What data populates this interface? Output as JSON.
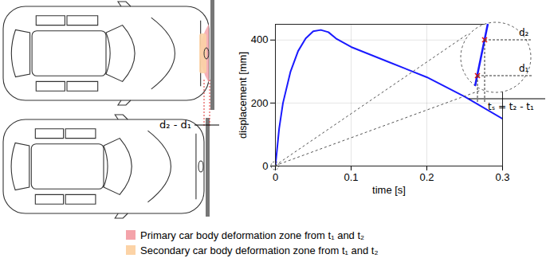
{
  "chart_data": {
    "type": "line",
    "x": [
      0,
      0.005,
      0.01,
      0.02,
      0.03,
      0.04,
      0.05,
      0.06,
      0.07,
      0.08,
      0.1,
      0.15,
      0.2,
      0.25,
      0.3
    ],
    "values": [
      0,
      120,
      200,
      300,
      365,
      405,
      428,
      432,
      425,
      405,
      378,
      330,
      282,
      220,
      150
    ],
    "color": "#1a1aff",
    "xlabel": "time [s]",
    "ylabel": "displacement [mm]",
    "xlim": [
      0,
      0.3
    ],
    "ylim": [
      0,
      450
    ],
    "xticks": [
      0,
      0.1,
      0.2,
      0.3
    ],
    "yticks": [
      0,
      200,
      400
    ],
    "grid": true,
    "annotations": [
      "d₂",
      "d₁",
      "tₛ = t₂ - t₁"
    ]
  },
  "diagram": {
    "distance_label": "d₂ - d₁",
    "zones": [
      {
        "label": "Primary car body deformation zone from t₁ and t₂",
        "color": "#f4a3aa"
      },
      {
        "label": "Secondary car body deformation zone from t₁ and t₂",
        "color": "#fcd3a6"
      }
    ]
  }
}
